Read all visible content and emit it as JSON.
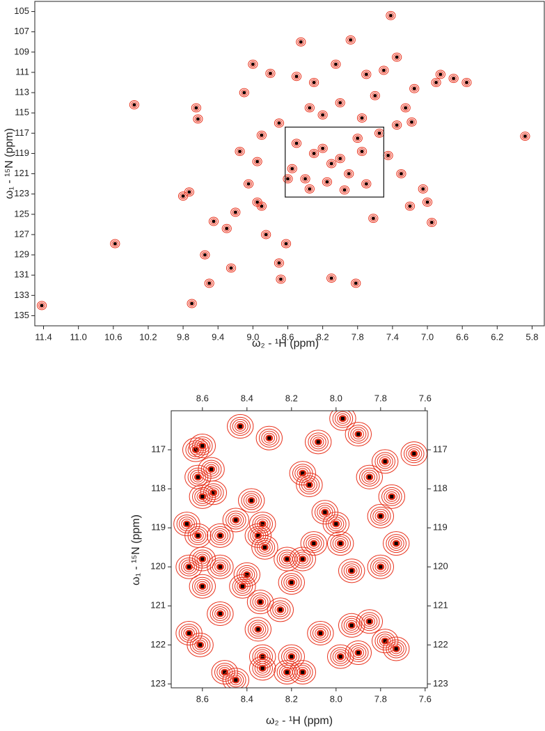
{
  "chart_data": [
    {
      "type": "scatter",
      "x_label": "ω₂ - ¹H  (ppm)",
      "y_label": "ω₁ - ¹⁵N  (ppm)",
      "xlim": [
        11.5,
        5.66
      ],
      "ylim": [
        104,
        136
      ],
      "xticks": [
        11.4,
        {
          "value": 11,
          "label": "11.0"
        },
        10.6,
        10.2,
        9.8,
        9.4,
        {
          "value": 9,
          "label": "9.0"
        },
        8.6,
        8.2,
        7.8,
        7.4,
        {
          "value": 7,
          "label": "7.0"
        },
        6.6,
        6.2,
        5.8
      ],
      "yticks": [
        105,
        107,
        109,
        111,
        113,
        115,
        117,
        119,
        121,
        123,
        125,
        127,
        129,
        131,
        133,
        135
      ],
      "color": "#e8301a",
      "marker_color": "#000000",
      "zoom_box": {
        "xlim": [
          8.63,
          7.5
        ],
        "ylim": [
          116.4,
          123.3
        ]
      },
      "x": [
        11.42,
        10.58,
        10.36,
        9.8,
        9.73,
        9.7,
        9.65,
        9.63,
        9.55,
        9.5,
        9.45,
        9.3,
        9.25,
        9.0,
        8.95,
        8.9,
        8.85,
        8.8,
        8.7,
        8.68,
        8.62,
        8.6,
        8.5,
        8.45,
        8.35,
        8.3,
        8.2,
        8.1,
        8.05,
        8.0,
        7.88,
        7.82,
        7.75,
        7.7,
        7.62,
        7.55,
        7.5,
        7.42,
        7.35,
        7.2,
        7.18,
        7.15,
        7.0,
        7.05,
        6.9,
        6.85,
        6.7,
        6.55,
        5.88,
        9.15,
        9.05,
        8.95,
        9.2,
        8.9,
        8.7,
        9.1,
        7.35,
        7.25,
        7.6,
        7.45,
        7.3,
        6.95,
        8.5,
        8.3,
        8.1,
        7.9,
        7.7,
        8.4,
        8.2,
        8.0,
        7.8,
        8.55,
        8.35,
        8.15,
        7.95,
        7.75
      ],
      "values": [
        134.0,
        127.9,
        114.2,
        123.2,
        122.8,
        133.8,
        114.5,
        115.6,
        129.0,
        131.8,
        125.7,
        126.4,
        130.3,
        110.2,
        119.8,
        124.2,
        127.0,
        111.1,
        129.8,
        131.4,
        127.9,
        121.5,
        111.4,
        108.0,
        114.5,
        112.0,
        115.2,
        131.3,
        110.2,
        114.0,
        107.8,
        131.8,
        115.5,
        111.2,
        125.4,
        117.0,
        110.8,
        105.4,
        109.5,
        124.2,
        115.9,
        112.6,
        123.8,
        122.5,
        112.0,
        111.2,
        111.6,
        112.0,
        117.3,
        118.8,
        122.0,
        123.8,
        124.8,
        117.2,
        116.0,
        113.0,
        116.2,
        114.5,
        113.3,
        119.2,
        121.0,
        125.8,
        118.0,
        119.0,
        120.0,
        121.0,
        122.0,
        121.5,
        118.5,
        119.5,
        117.5,
        120.5,
        122.5,
        121.8,
        122.6,
        118.8
      ]
    },
    {
      "type": "scatter",
      "x_label": "ω₂ - ¹H  (ppm)",
      "y_label": "ω₁ - ¹⁵N  (ppm)",
      "xlim": [
        8.74,
        7.59
      ],
      "ylim": [
        116.0,
        123.1
      ],
      "xticks": [
        8.6,
        8.4,
        8.2,
        {
          "value": 8,
          "label": "8.0"
        },
        7.8,
        7.6
      ],
      "yticks": [
        117,
        118,
        119,
        120,
        121,
        122,
        123
      ],
      "color": "#e8301a",
      "marker_color": "#000000",
      "x": [
        8.63,
        8.6,
        8.62,
        8.56,
        8.55,
        8.6,
        8.67,
        8.62,
        8.52,
        8.6,
        8.52,
        8.66,
        8.6,
        8.52,
        8.66,
        8.61,
        8.43,
        8.3,
        8.45,
        8.38,
        8.33,
        8.35,
        8.32,
        8.4,
        8.42,
        8.34,
        8.35,
        8.33,
        8.33,
        8.22,
        8.2,
        8.25,
        8.2,
        8.15,
        8.22,
        8.5,
        8.45,
        8.15,
        8.12,
        8.08,
        8.05,
        8.0,
        7.97,
        7.9,
        7.98,
        7.93,
        7.85,
        7.78,
        7.75,
        7.8,
        7.73,
        7.8,
        8.07,
        7.93,
        7.85,
        7.98,
        7.9,
        7.78,
        7.73,
        8.1,
        8.15,
        7.65
      ],
      "values": [
        117.0,
        116.9,
        117.7,
        117.5,
        118.1,
        118.2,
        118.9,
        119.2,
        119.2,
        119.8,
        120.0,
        120.0,
        120.5,
        121.2,
        121.7,
        122.0,
        116.4,
        116.7,
        118.8,
        118.3,
        118.9,
        119.2,
        119.5,
        120.2,
        120.5,
        120.9,
        121.6,
        122.3,
        122.6,
        119.8,
        120.4,
        121.1,
        122.3,
        122.7,
        122.7,
        122.7,
        122.9,
        117.6,
        117.9,
        116.8,
        118.6,
        118.9,
        116.2,
        116.6,
        119.4,
        120.1,
        117.7,
        117.3,
        118.2,
        118.7,
        119.4,
        120.0,
        121.7,
        121.5,
        121.4,
        122.3,
        122.2,
        121.9,
        122.1,
        119.4,
        119.8,
        117.1
      ]
    }
  ]
}
